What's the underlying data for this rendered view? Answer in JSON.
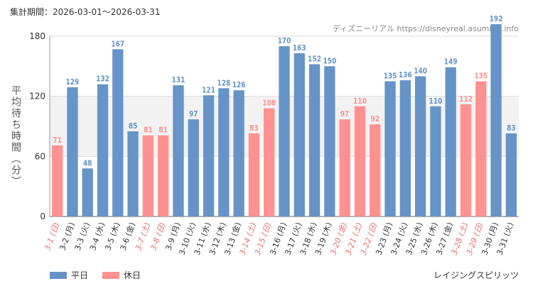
{
  "header": {
    "period": "集計期間：2026-03-01〜2026-03-31",
    "source": "ディズニーリアル https://disneyreal.asumirai.info"
  },
  "footer": {
    "attraction": "レイジングスピリッツ"
  },
  "colors": {
    "weekday": "#6694c8",
    "holiday": "#ff9190",
    "holiday_label": "#e8706e"
  },
  "chart_data": {
    "type": "bar",
    "title": "",
    "xlabel": "",
    "ylabel": "平均待ち時間（分）",
    "ylim": [
      0,
      180
    ],
    "yticks": [
      0,
      60,
      120,
      180
    ],
    "categories": [
      "3-1 (日)",
      "3-2 (月)",
      "3-3 (火)",
      "3-4 (水)",
      "3-5 (木)",
      "3-6 (金)",
      "3-7 (土)",
      "3-8 (日)",
      "3-9 (月)",
      "3-10 (火)",
      "3-11 (水)",
      "3-12 (木)",
      "3-13 (金)",
      "3-14 (土)",
      "3-15 (日)",
      "3-16 (月)",
      "3-17 (火)",
      "3-18 (水)",
      "3-19 (木)",
      "3-20 (金)",
      "3-21 (土)",
      "3-22 (日)",
      "3-23 (月)",
      "3-24 (火)",
      "3-25 (水)",
      "3-26 (木)",
      "3-27 (金)",
      "3-28 (土)",
      "3-29 (日)",
      "3-30 (月)",
      "3-31 (火)"
    ],
    "values": [
      71,
      129,
      48,
      132,
      167,
      85,
      81,
      81,
      131,
      97,
      121,
      128,
      126,
      83,
      108,
      170,
      163,
      152,
      150,
      97,
      110,
      92,
      135,
      136,
      140,
      110,
      149,
      112,
      135,
      192,
      83
    ],
    "day_type": [
      "h",
      "w",
      "w",
      "w",
      "w",
      "w",
      "h",
      "h",
      "w",
      "w",
      "w",
      "w",
      "w",
      "h",
      "h",
      "w",
      "w",
      "w",
      "w",
      "h",
      "h",
      "h",
      "w",
      "w",
      "w",
      "w",
      "w",
      "h",
      "h",
      "w",
      "w"
    ],
    "legend": [
      {
        "key": "w",
        "label": "平日"
      },
      {
        "key": "h",
        "label": "休日"
      }
    ]
  }
}
